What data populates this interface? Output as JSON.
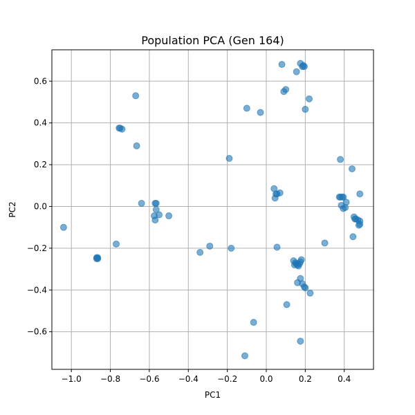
{
  "chart_data": {
    "type": "scatter",
    "title": "Population PCA (Gen 164)",
    "xlabel": "PC1",
    "ylabel": "PC2",
    "xlim": [
      -1.1,
      0.55
    ],
    "ylim": [
      -0.78,
      0.75
    ],
    "xticks": [
      -1.0,
      -0.8,
      -0.6,
      -0.4,
      -0.2,
      0.0,
      0.2,
      0.4
    ],
    "xtick_labels": [
      "−1.0",
      "−0.8",
      "−0.6",
      "−0.4",
      "−0.2",
      "0.0",
      "0.2",
      "0.4"
    ],
    "yticks": [
      -0.6,
      -0.4,
      -0.2,
      0.0,
      0.2,
      0.4,
      0.6
    ],
    "ytick_labels": [
      "−0.6",
      "−0.4",
      "−0.2",
      "0.0",
      "0.2",
      "0.4",
      "0.6"
    ],
    "grid": true,
    "color": "#1f77b4",
    "alpha": 0.6,
    "points": [
      [
        -1.04,
        -0.1
      ],
      [
        -0.87,
        -0.245
      ],
      [
        -0.865,
        -0.245
      ],
      [
        -0.87,
        -0.25
      ],
      [
        -0.865,
        -0.25
      ],
      [
        -0.77,
        -0.18
      ],
      [
        -0.75,
        0.375
      ],
      [
        -0.74,
        0.37
      ],
      [
        -0.755,
        0.375
      ],
      [
        -0.67,
        0.53
      ],
      [
        -0.665,
        0.29
      ],
      [
        -0.64,
        0.015
      ],
      [
        -0.57,
        0.015
      ],
      [
        -0.565,
        0.015
      ],
      [
        -0.565,
        -0.015
      ],
      [
        -0.575,
        -0.045
      ],
      [
        -0.57,
        -0.065
      ],
      [
        -0.55,
        -0.04
      ],
      [
        -0.5,
        -0.045
      ],
      [
        -0.34,
        -0.22
      ],
      [
        -0.29,
        -0.19
      ],
      [
        -0.19,
        0.23
      ],
      [
        -0.18,
        -0.2
      ],
      [
        -0.1,
        0.47
      ],
      [
        -0.03,
        0.45
      ],
      [
        -0.11,
        -0.715
      ],
      [
        -0.065,
        -0.555
      ],
      [
        0.04,
        0.085
      ],
      [
        0.05,
        0.06
      ],
      [
        0.045,
        0.04
      ],
      [
        0.07,
        0.065
      ],
      [
        0.055,
        0.06
      ],
      [
        0.055,
        -0.195
      ],
      [
        0.08,
        0.68
      ],
      [
        0.09,
        0.55
      ],
      [
        0.1,
        0.56
      ],
      [
        0.155,
        0.645
      ],
      [
        0.175,
        0.685
      ],
      [
        0.185,
        0.67
      ],
      [
        0.195,
        0.67
      ],
      [
        0.19,
        0.675
      ],
      [
        0.2,
        0.465
      ],
      [
        0.22,
        0.515
      ],
      [
        0.14,
        -0.26
      ],
      [
        0.15,
        -0.27
      ],
      [
        0.145,
        -0.28
      ],
      [
        0.155,
        -0.275
      ],
      [
        0.16,
        -0.28
      ],
      [
        0.165,
        -0.285
      ],
      [
        0.17,
        -0.275
      ],
      [
        0.175,
        -0.265
      ],
      [
        0.18,
        -0.255
      ],
      [
        0.16,
        -0.365
      ],
      [
        0.175,
        -0.345
      ],
      [
        0.185,
        -0.37
      ],
      [
        0.195,
        -0.385
      ],
      [
        0.2,
        -0.39
      ],
      [
        0.225,
        -0.415
      ],
      [
        0.105,
        -0.47
      ],
      [
        0.175,
        -0.645
      ],
      [
        0.3,
        -0.175
      ],
      [
        0.38,
        0.225
      ],
      [
        0.44,
        0.18
      ],
      [
        0.375,
        0.045
      ],
      [
        0.38,
        0.045
      ],
      [
        0.39,
        0.045
      ],
      [
        0.385,
        0.005
      ],
      [
        0.395,
        -0.01
      ],
      [
        0.405,
        -0.005
      ],
      [
        0.41,
        0.02
      ],
      [
        0.395,
        0.045
      ],
      [
        0.45,
        -0.05
      ],
      [
        0.455,
        -0.06
      ],
      [
        0.46,
        -0.06
      ],
      [
        0.47,
        -0.065
      ],
      [
        0.48,
        -0.07
      ],
      [
        0.48,
        -0.085
      ],
      [
        0.475,
        -0.09
      ],
      [
        0.445,
        -0.145
      ],
      [
        0.48,
        0.06
      ]
    ]
  }
}
